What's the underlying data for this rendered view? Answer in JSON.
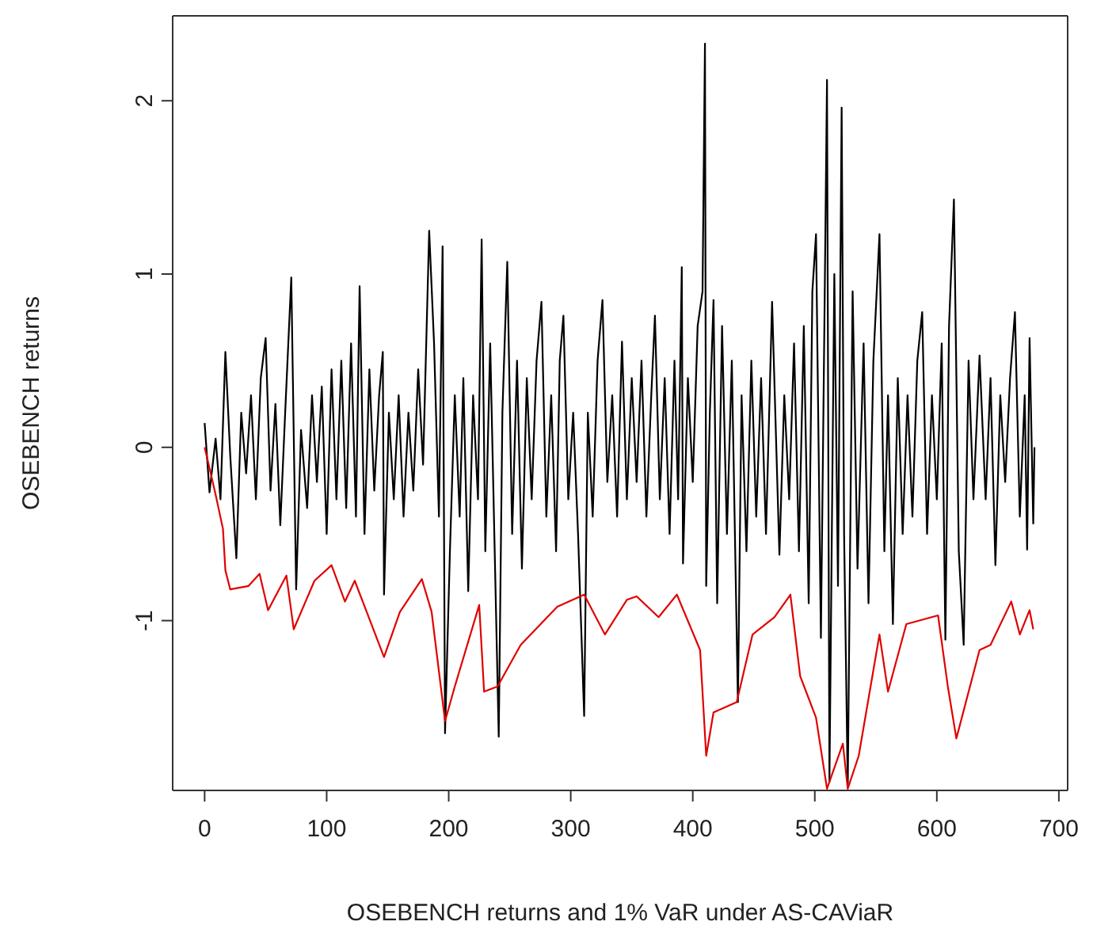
{
  "chart_data": {
    "type": "line",
    "xlabel": "OSEBENCH returns and 1% VaR under AS-CAViaR",
    "ylabel": "OSEBENCH returns",
    "xlim": [
      -26.2,
      707.2
    ],
    "xticks": [
      0,
      100,
      200,
      300,
      400,
      500,
      600,
      700
    ],
    "ylim": [
      -1.98,
      2.49
    ],
    "yticks": [
      -1,
      0,
      1,
      2
    ],
    "marker": "none",
    "line_style": "solid",
    "series": [
      {
        "color": "#000000",
        "x": [
          0,
          4,
          9,
          13,
          17,
          21,
          26,
          30,
          34,
          38,
          42,
          46,
          50,
          54,
          58,
          62,
          66,
          71,
          75,
          79,
          84,
          88,
          92,
          96,
          100,
          104,
          108,
          112,
          116,
          120,
          124,
          127,
          131,
          135,
          139,
          143,
          146,
          147,
          151,
          155,
          159,
          163,
          167,
          171,
          175,
          179,
          184,
          188,
          192,
          195,
          197,
          201,
          205,
          209,
          212,
          216,
          220,
          224,
          227,
          230,
          234,
          238,
          241,
          244,
          248,
          252,
          256,
          260,
          264,
          268,
          272,
          276,
          280,
          284,
          288,
          291,
          294,
          298,
          302,
          306,
          311,
          314,
          318,
          322,
          326,
          330,
          334,
          338,
          342,
          346,
          350,
          354,
          358,
          362,
          366,
          369,
          373,
          377,
          381,
          385,
          388,
          391,
          392,
          396,
          400,
          404,
          408,
          410,
          411,
          414,
          417,
          420,
          424,
          428,
          432,
          437,
          440,
          444,
          448,
          452,
          456,
          460,
          465,
          471,
          475,
          479,
          483,
          487,
          491,
          495,
          498,
          501,
          505,
          508,
          510,
          512,
          516,
          519,
          522,
          524,
          527,
          531,
          535,
          540,
          544,
          548,
          553,
          557,
          560,
          564,
          568,
          572,
          576,
          580,
          584,
          588,
          592,
          596,
          600,
          604,
          607,
          610,
          614,
          618,
          622,
          626,
          630,
          635,
          640,
          644,
          648,
          652,
          656,
          660,
          664,
          668,
          672,
          674,
          676,
          679,
          680
        ],
        "values": [
          0.14,
          -0.26,
          0.05,
          -0.3,
          0.55,
          -0.05,
          -0.64,
          0.2,
          -0.15,
          0.3,
          -0.3,
          0.4,
          0.63,
          -0.25,
          0.25,
          -0.45,
          0.2,
          0.98,
          -0.82,
          0.1,
          -0.35,
          0.3,
          -0.2,
          0.35,
          -0.5,
          0.45,
          -0.3,
          0.5,
          -0.35,
          0.6,
          -0.4,
          0.93,
          -0.5,
          0.45,
          -0.25,
          0.3,
          0.55,
          -0.85,
          0.2,
          -0.3,
          0.3,
          -0.4,
          0.2,
          -0.25,
          0.45,
          -0.1,
          1.25,
          0.6,
          -0.4,
          1.16,
          -1.65,
          -0.6,
          0.3,
          -0.4,
          0.4,
          -0.83,
          0.3,
          -0.3,
          1.2,
          -0.6,
          0.6,
          -0.7,
          -1.67,
          0.2,
          1.07,
          -0.5,
          0.5,
          -0.7,
          0.4,
          -0.3,
          0.5,
          0.84,
          -0.4,
          0.3,
          -0.6,
          0.5,
          0.76,
          -0.3,
          0.2,
          -0.5,
          -1.55,
          0.2,
          -0.4,
          0.5,
          0.85,
          -0.2,
          0.3,
          -0.4,
          0.61,
          -0.3,
          0.4,
          -0.2,
          0.5,
          -0.4,
          0.3,
          0.76,
          -0.3,
          0.4,
          -0.5,
          0.5,
          -0.3,
          1.04,
          -0.67,
          0.4,
          -0.2,
          0.7,
          0.9,
          2.33,
          -0.8,
          0.2,
          0.85,
          -0.9,
          0.7,
          -0.5,
          0.5,
          -1.47,
          0.3,
          -0.6,
          0.5,
          -0.4,
          0.4,
          -0.5,
          0.84,
          -0.62,
          0.3,
          -0.3,
          0.6,
          -0.6,
          0.7,
          -0.9,
          0.9,
          1.23,
          -1.1,
          0.8,
          2.12,
          -1.93,
          1.0,
          -0.8,
          1.96,
          -0.5,
          -1.96,
          0.9,
          -0.7,
          0.6,
          -0.9,
          0.5,
          1.23,
          -0.6,
          0.3,
          -1.02,
          0.4,
          -0.5,
          0.3,
          -0.4,
          0.5,
          0.78,
          -0.5,
          0.3,
          -0.3,
          0.6,
          -1.11,
          0.7,
          1.43,
          -0.6,
          -1.14,
          0.5,
          -0.3,
          0.53,
          -0.3,
          0.4,
          -0.68,
          0.3,
          -0.2,
          0.4,
          0.78,
          -0.4,
          0.3,
          -0.59,
          0.63,
          -0.44,
          0.0
        ]
      },
      {
        "color": "#e00000",
        "x": [
          0,
          8.6,
          15,
          17,
          21,
          36,
          45,
          52,
          67,
          73,
          90,
          104,
          115,
          123,
          147,
          160,
          178,
          186,
          197,
          205,
          225,
          229,
          240,
          259,
          289,
          311,
          328,
          346,
          354,
          372,
          387,
          406,
          411,
          417,
          436,
          449,
          467,
          480,
          488,
          501,
          510,
          523,
          527,
          536,
          553,
          560,
          575,
          601,
          609,
          616,
          635,
          644,
          661,
          668,
          676,
          679
        ],
        "values": [
          0,
          -0.26,
          -0.47,
          -0.71,
          -0.82,
          -0.8,
          -0.73,
          -0.94,
          -0.74,
          -1.05,
          -0.77,
          -0.68,
          -0.89,
          -0.77,
          -1.21,
          -0.95,
          -0.76,
          -0.95,
          -1.58,
          -1.38,
          -0.91,
          -1.41,
          -1.38,
          -1.14,
          -0.92,
          -0.85,
          -1.08,
          -0.88,
          -0.86,
          -0.98,
          -0.85,
          -1.17,
          -1.78,
          -1.53,
          -1.47,
          -1.08,
          -0.98,
          -0.85,
          -1.32,
          -1.56,
          -1.97,
          -1.71,
          -1.97,
          -1.78,
          -1.08,
          -1.41,
          -1.02,
          -0.97,
          -1.38,
          -1.68,
          -1.17,
          -1.14,
          -0.89,
          -1.08,
          -0.94,
          -1.05
        ]
      }
    ]
  }
}
